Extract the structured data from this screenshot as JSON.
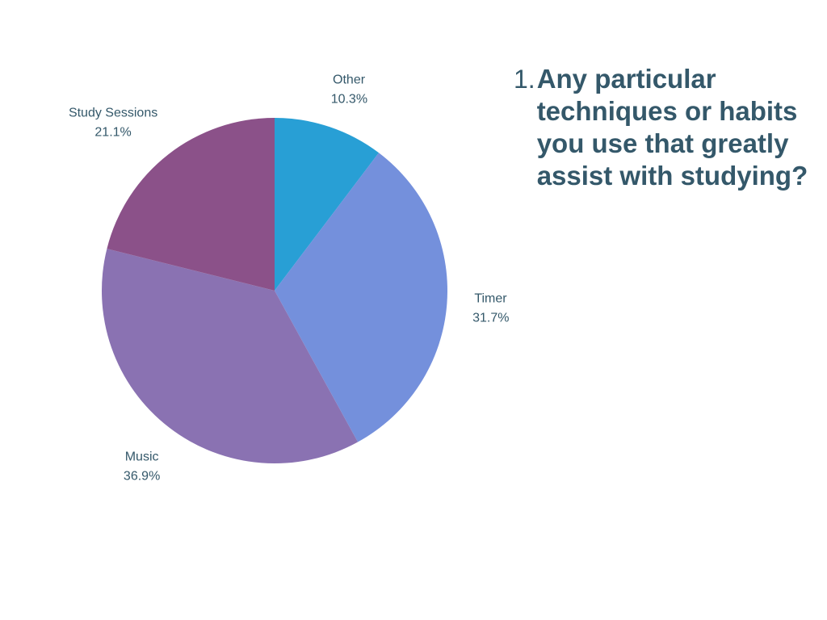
{
  "question": {
    "number": "1.",
    "text": "Any particular techniques or habits you use that greatly assist with studying?"
  },
  "chart_data": {
    "type": "pie",
    "start_angle": "12 o'clock",
    "direction": "clockwise",
    "slices": [
      {
        "label": "Other",
        "value": 10.3,
        "value_label": "10.3%",
        "color": "#289fd5"
      },
      {
        "label": "Timer",
        "value": 31.7,
        "value_label": "31.7%",
        "color": "#7490dc"
      },
      {
        "label": "Music",
        "value": 36.9,
        "value_label": "36.9%",
        "color": "#8a72b2"
      },
      {
        "label": "Study Sessions",
        "value": 21.1,
        "value_label": "21.1%",
        "color": "#8b5189"
      }
    ],
    "legend": "none",
    "label_color": "#34586a"
  }
}
